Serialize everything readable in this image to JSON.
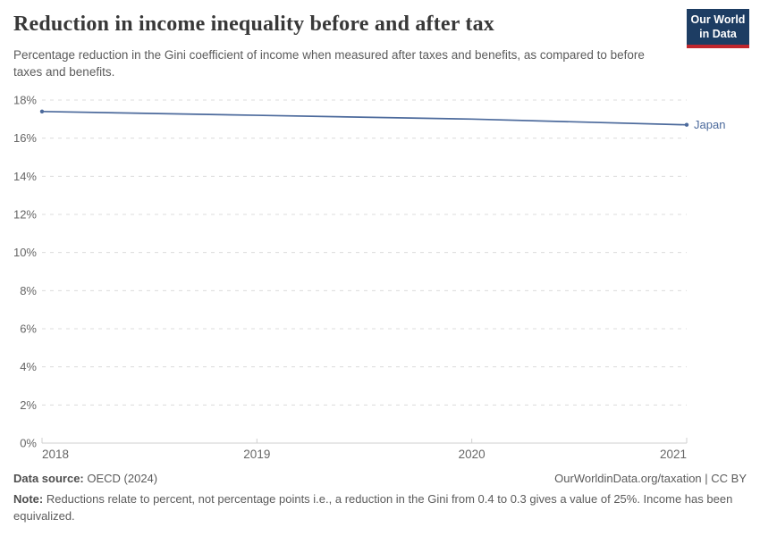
{
  "header": {
    "title": "Reduction in income inequality before and after tax",
    "subtitle": "Percentage reduction in the Gini coefficient of income when measured after taxes and benefits, as compared to before taxes and benefits.",
    "logo": {
      "line1": "Our World",
      "line2": "in Data"
    }
  },
  "chart_data": {
    "type": "line",
    "title": "Reduction in income inequality before and after tax",
    "x": [
      2018,
      2019,
      2020,
      2021
    ],
    "x_tick_labels": [
      "2018",
      "2019",
      "2020",
      "2021"
    ],
    "series": [
      {
        "name": "Japan",
        "values": [
          17.4,
          17.2,
          17.0,
          16.7
        ]
      }
    ],
    "ylim": [
      0,
      18
    ],
    "ytick_step": 2,
    "ytick_suffix": "%",
    "grid": "horizontal-dashed",
    "legend_position": "line-end-label"
  },
  "footer": {
    "source_label": "Data source:",
    "source_text": " OECD (2024)",
    "credit": "OurWorldinData.org/taxation | CC BY",
    "note_label": "Note:",
    "note_text": " Reductions relate to percent, not percentage points i.e., a reduction in the Gini from 0.4 to 0.3 gives a value of 25%. Income has been equivalized."
  },
  "colors": {
    "series_blue": "#4c6a9c",
    "grid": "#dcdcdc",
    "axis": "#cfcfcf",
    "tick_text": "#666666",
    "logo_bg": "#1d3d63",
    "logo_red": "#c0262d",
    "title_text": "#383838",
    "subtle_text": "#5b5b5b"
  }
}
